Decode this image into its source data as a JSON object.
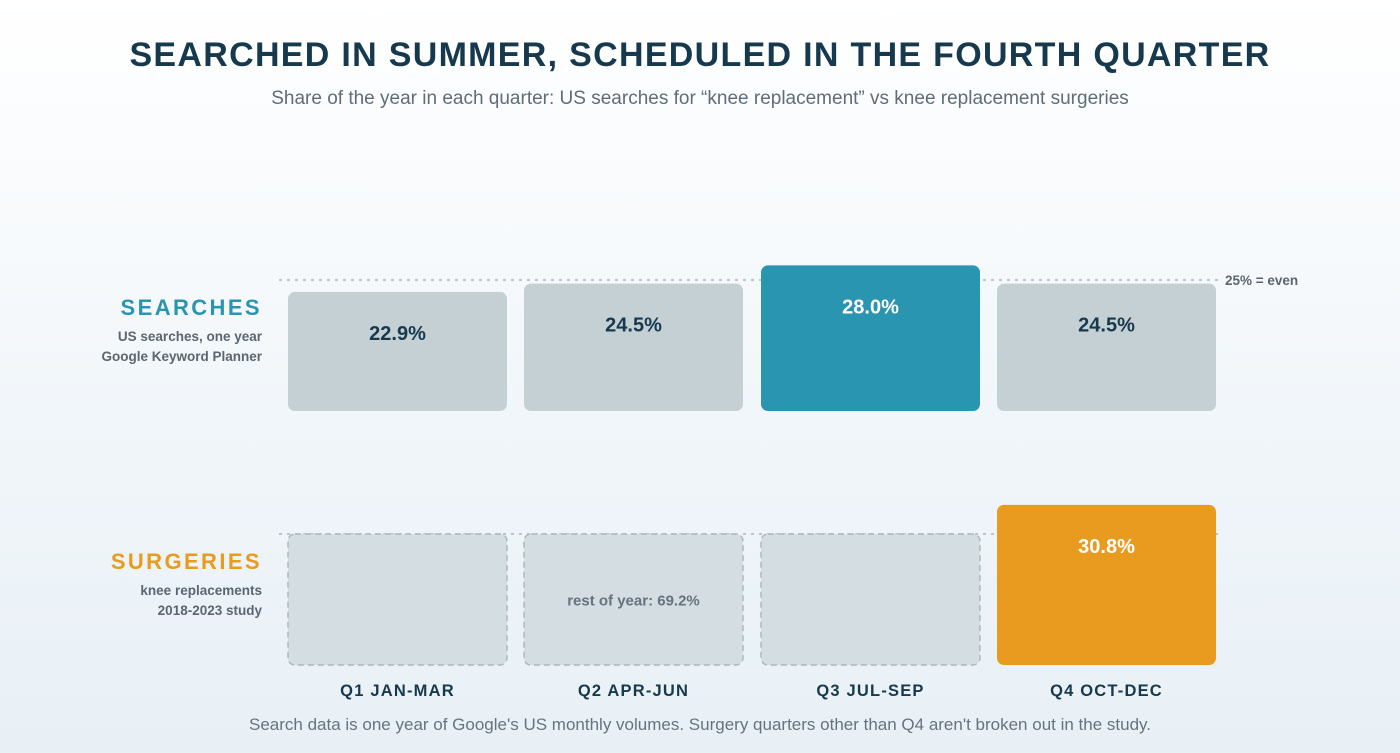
{
  "title": "SEARCHED IN SUMMER, SCHEDULED IN THE FOURTH QUARTER",
  "subtitle": "Share of the year in each quarter: US searches for “knee replacement” vs knee replacement surgeries",
  "footnote": "Search data is one year of Google's US monthly volumes. Surgery quarters other than Q4 aren't broken out in the study.",
  "colors": {
    "searches_accent": "#2a95b0",
    "surgeries_accent": "#e89b1f",
    "neutral_bar": "#c5d0d5",
    "unknown_bar": "#d3dde2",
    "label_dark": "#17394d",
    "label_light": "#ffffff"
  },
  "chart_data": {
    "type": "bar",
    "categories": [
      "Q1 JAN-MAR",
      "Q2 APR-JUN",
      "Q3 JUL-SEP",
      "Q4 OCT-DEC"
    ],
    "reference": {
      "value": 25,
      "label": "25% = even"
    },
    "rows": [
      {
        "key": "searches",
        "title": "SEARCHES",
        "subtitle_lines": [
          "US searches, one year",
          "Google Keyword Planner"
        ],
        "values": [
          22.9,
          24.5,
          28.0,
          24.5
        ],
        "labels": [
          "22.9%",
          "24.5%",
          "28.0%",
          "24.5%"
        ],
        "highlight_index": 2
      },
      {
        "key": "surgeries",
        "title": "SURGERIES",
        "subtitle_lines": [
          "knee replacements",
          "2018-2023 study"
        ],
        "values": [
          null,
          null,
          null,
          30.8
        ],
        "labels": [
          "",
          "",
          "",
          "30.8%"
        ],
        "highlight_index": 3,
        "rest_of_year": {
          "value": 69.2,
          "label": "rest of year: 69.2%"
        }
      }
    ]
  }
}
